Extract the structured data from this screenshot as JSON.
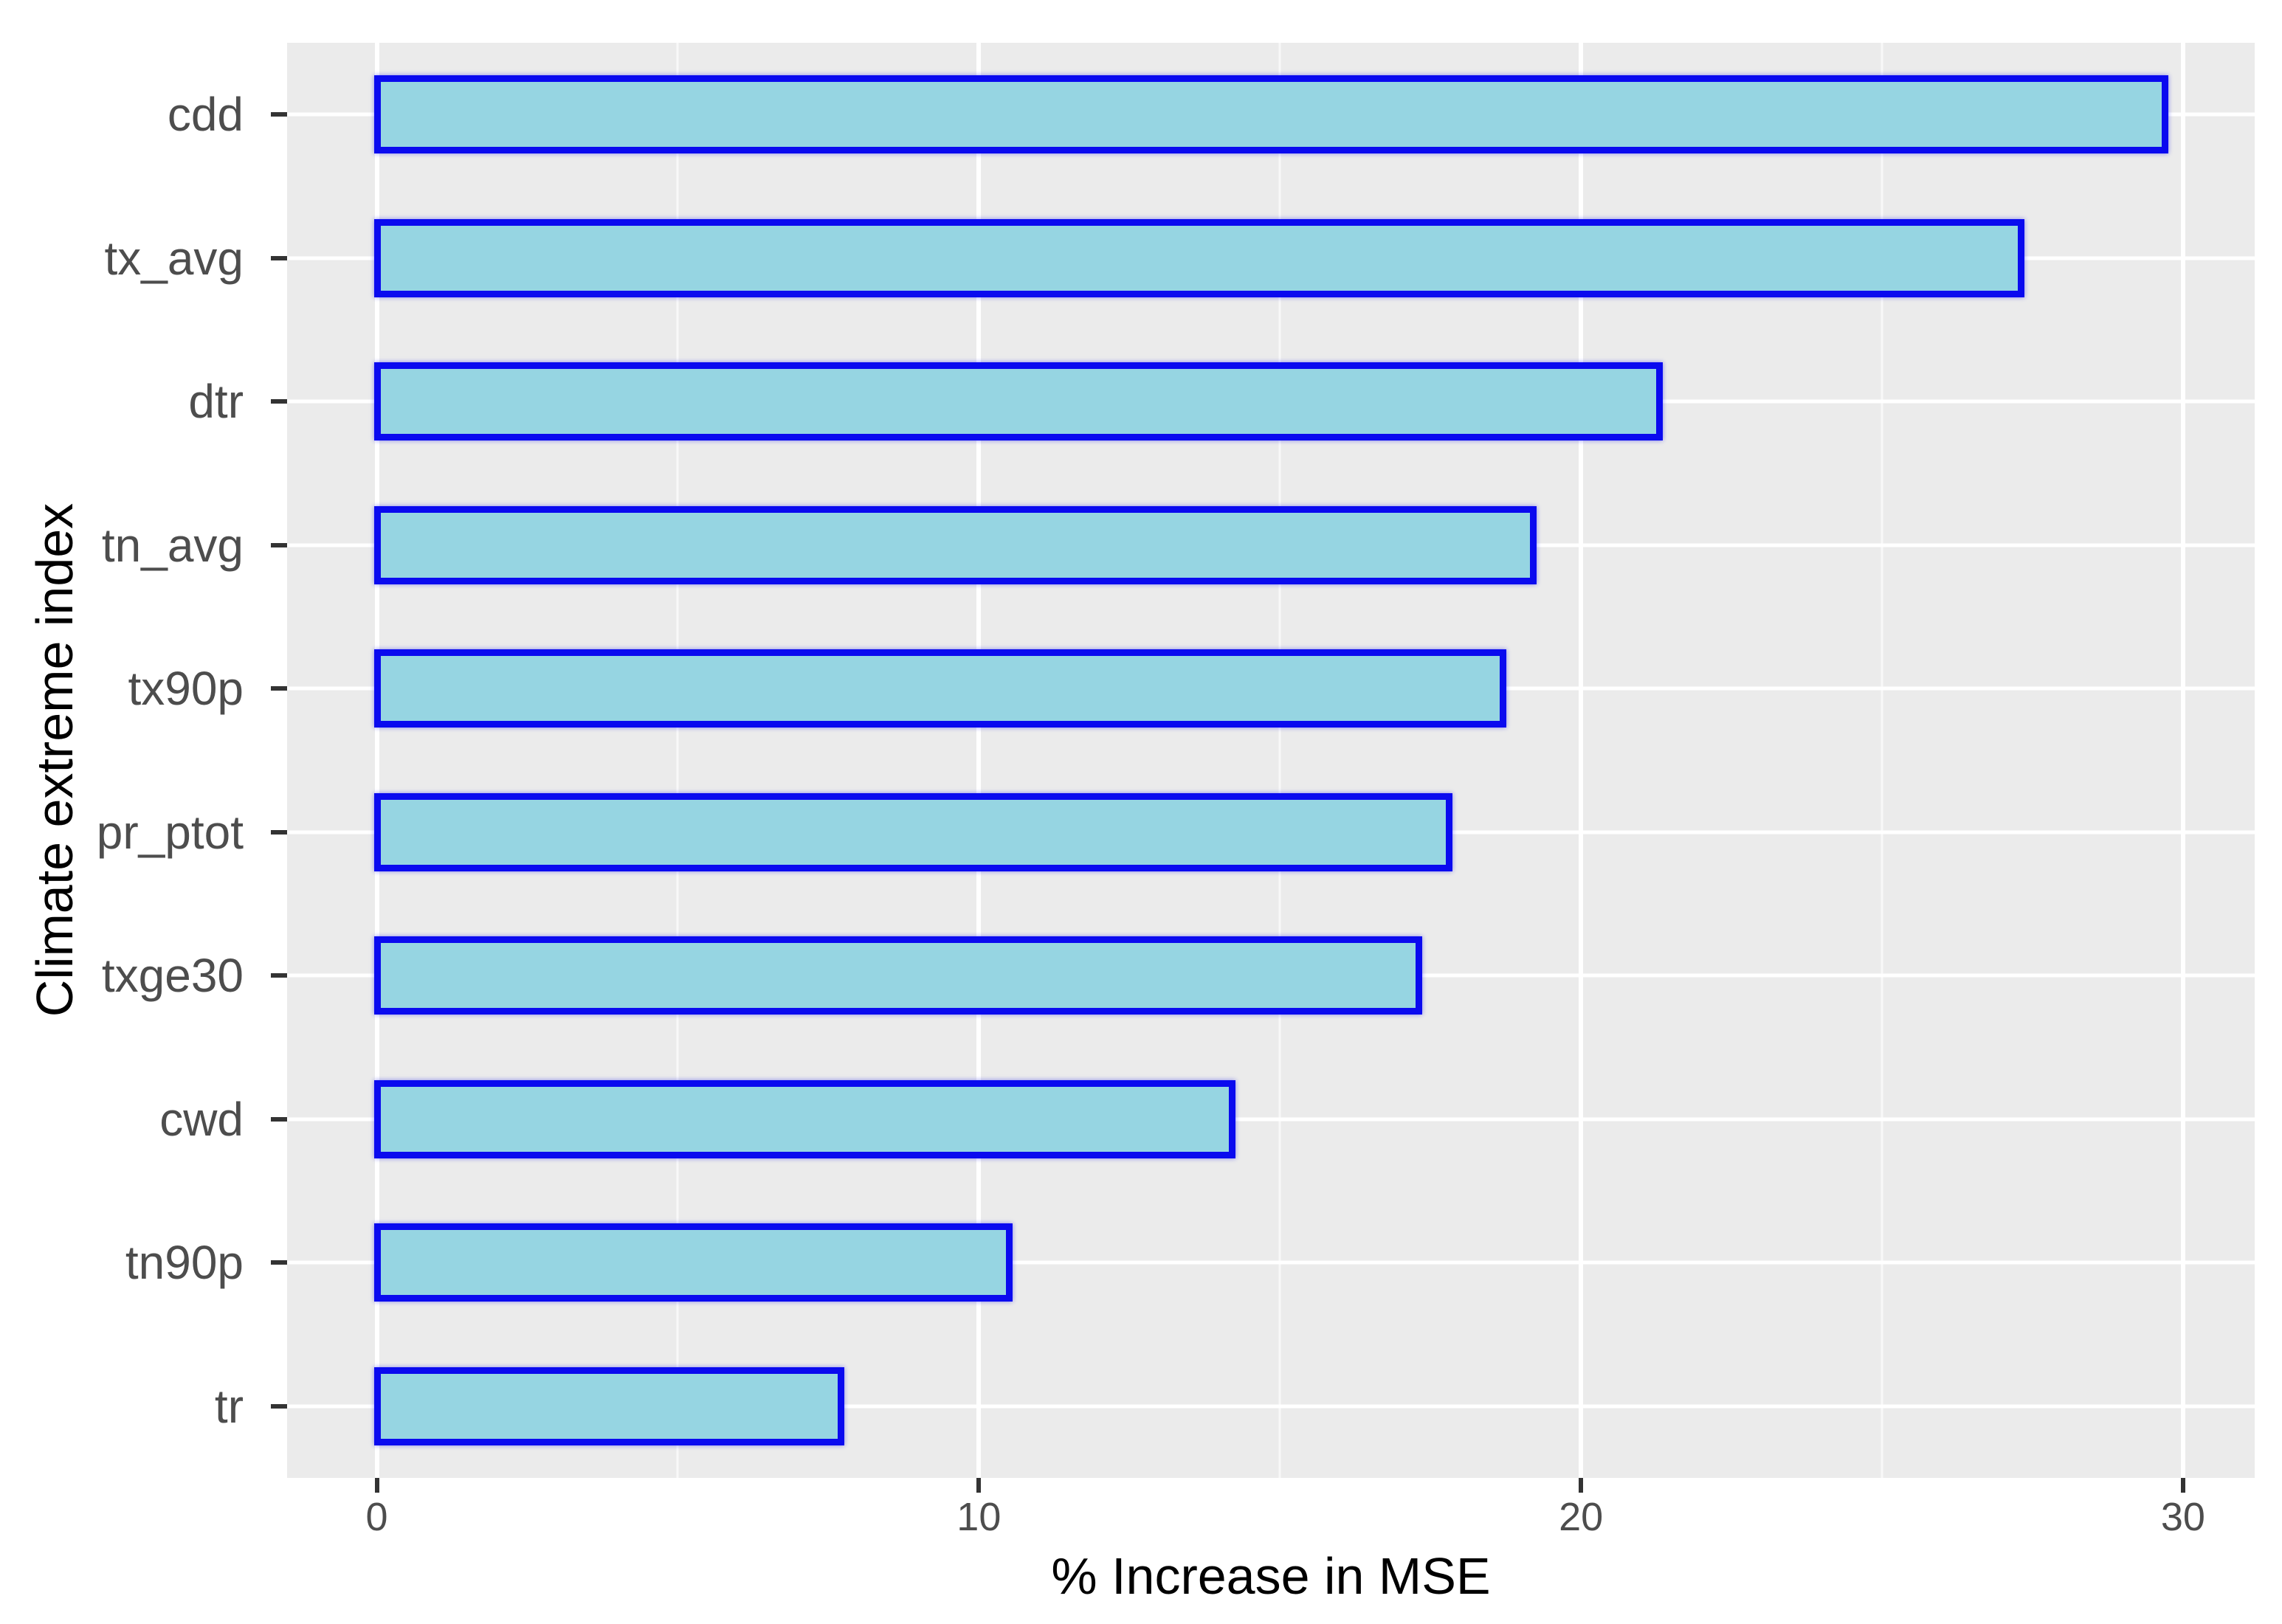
{
  "chart_data": {
    "type": "bar",
    "orientation": "horizontal",
    "title": "",
    "xlabel": "% Increase in MSE",
    "ylabel": "Climate extreme index",
    "categories": [
      "cdd",
      "tx_avg",
      "dtr",
      "tn_avg",
      "tx90p",
      "pr_ptot",
      "txge30",
      "cwd",
      "tn90p",
      "tr"
    ],
    "values": [
      29.7,
      27.3,
      21.3,
      19.2,
      18.7,
      17.8,
      17.3,
      14.2,
      10.5,
      7.7
    ],
    "xlim": [
      -1.49,
      31.19
    ],
    "xticks": [
      0,
      10,
      20,
      30
    ],
    "xtick_labels": [
      "0",
      "10",
      "20",
      "30"
    ],
    "xticks_minor": [
      5,
      15,
      25
    ],
    "grid": "white major gridlines at x ticks and category rows, faint white minor gridlines, on gray panel",
    "legend": "none",
    "colors": {
      "bar_fill": "#96D5E2",
      "bar_border": "#0A0AEF",
      "panel_background": "#EBEBEB",
      "gridline": "#FFFFFF",
      "tick_mark": "#333333",
      "tick_label": "#4D4D4D",
      "axis_title": "#000000",
      "figure_background": "#FFFFFF"
    }
  }
}
